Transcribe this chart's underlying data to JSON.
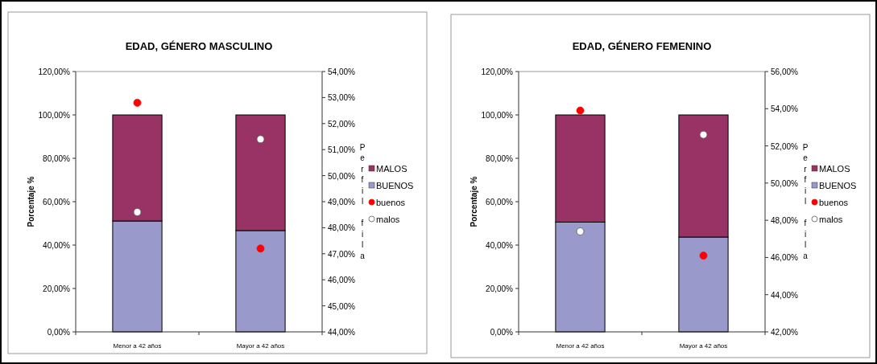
{
  "chart_data": [
    {
      "type": "bar",
      "title": "EDAD, GÉNERO MASCULINO",
      "ylabel": "Porcentaje %",
      "y2label": "Perfil fila",
      "categories": [
        "Menor a 42 años",
        "Mayor a 42 años"
      ],
      "stacked": true,
      "legend": "right",
      "marker": "circle",
      "series": [
        {
          "name": "BUENOS",
          "color": "#9999cc",
          "values": [
            51.1,
            46.7
          ]
        },
        {
          "name": "MALOS",
          "color": "#993366",
          "values": [
            48.9,
            53.3
          ]
        },
        {
          "name": "buenos",
          "type": "scatter",
          "axis": "y2",
          "color": "#ff0000",
          "values": [
            52.8,
            47.2
          ]
        },
        {
          "name": "malos",
          "type": "scatter",
          "axis": "y2",
          "color": "#ffffff",
          "values": [
            48.6,
            51.4
          ]
        }
      ],
      "ylim": [
        0,
        120
      ],
      "yticks": [
        {
          "value": 0,
          "label": "0,00%"
        },
        {
          "value": 20,
          "label": "20,00%"
        },
        {
          "value": 40,
          "label": "40,00%"
        },
        {
          "value": 60,
          "label": "60,00%"
        },
        {
          "value": 80,
          "label": "80,00%"
        },
        {
          "value": 100,
          "label": "100,00%"
        },
        {
          "value": 120,
          "label": "120,00%"
        }
      ],
      "y2lim": [
        44,
        54
      ],
      "y2ticks": [
        {
          "value": 44,
          "label": "44,00%"
        },
        {
          "value": 45,
          "label": "45,00%"
        },
        {
          "value": 46,
          "label": "46,00%"
        },
        {
          "value": 47,
          "label": "47,00%"
        },
        {
          "value": 48,
          "label": "48,00%"
        },
        {
          "value": 49,
          "label": "49,00%"
        },
        {
          "value": 50,
          "label": "50,00%"
        },
        {
          "value": 51,
          "label": "51,00%"
        },
        {
          "value": 52,
          "label": "52,00%"
        },
        {
          "value": 53,
          "label": "53,00%"
        },
        {
          "value": 54,
          "label": "54,00%"
        }
      ]
    },
    {
      "type": "bar",
      "title": "EDAD, GÉNERO FEMENINO",
      "ylabel": "Porcentaje %",
      "y2label": "Perfil fila",
      "categories": [
        "Menor a 42 años",
        "Mayor a 42 años"
      ],
      "stacked": true,
      "legend": "right",
      "marker": "circle",
      "series": [
        {
          "name": "BUENOS",
          "color": "#9999cc",
          "values": [
            50.6,
            43.7
          ]
        },
        {
          "name": "MALOS",
          "color": "#993366",
          "values": [
            49.4,
            56.3
          ]
        },
        {
          "name": "buenos",
          "type": "scatter",
          "axis": "y2",
          "color": "#ff0000",
          "values": [
            53.9,
            46.1
          ]
        },
        {
          "name": "malos",
          "type": "scatter",
          "axis": "y2",
          "color": "#ffffff",
          "values": [
            47.4,
            52.6
          ]
        }
      ],
      "ylim": [
        0,
        120
      ],
      "yticks": [
        {
          "value": 0,
          "label": "0,00%"
        },
        {
          "value": 20,
          "label": "20,00%"
        },
        {
          "value": 40,
          "label": "40,00%"
        },
        {
          "value": 60,
          "label": "60,00%"
        },
        {
          "value": 80,
          "label": "80,00%"
        },
        {
          "value": 100,
          "label": "100,00%"
        },
        {
          "value": 120,
          "label": "120,00%"
        }
      ],
      "y2lim": [
        42,
        56
      ],
      "y2ticks": [
        {
          "value": 42,
          "label": "42,00%"
        },
        {
          "value": 44,
          "label": "44,00%"
        },
        {
          "value": 46,
          "label": "46,00%"
        },
        {
          "value": 48,
          "label": "48,00%"
        },
        {
          "value": 50,
          "label": "50,00%"
        },
        {
          "value": 52,
          "label": "52,00%"
        },
        {
          "value": 54,
          "label": "54,00%"
        },
        {
          "value": 56,
          "label": "56,00%"
        }
      ]
    }
  ]
}
